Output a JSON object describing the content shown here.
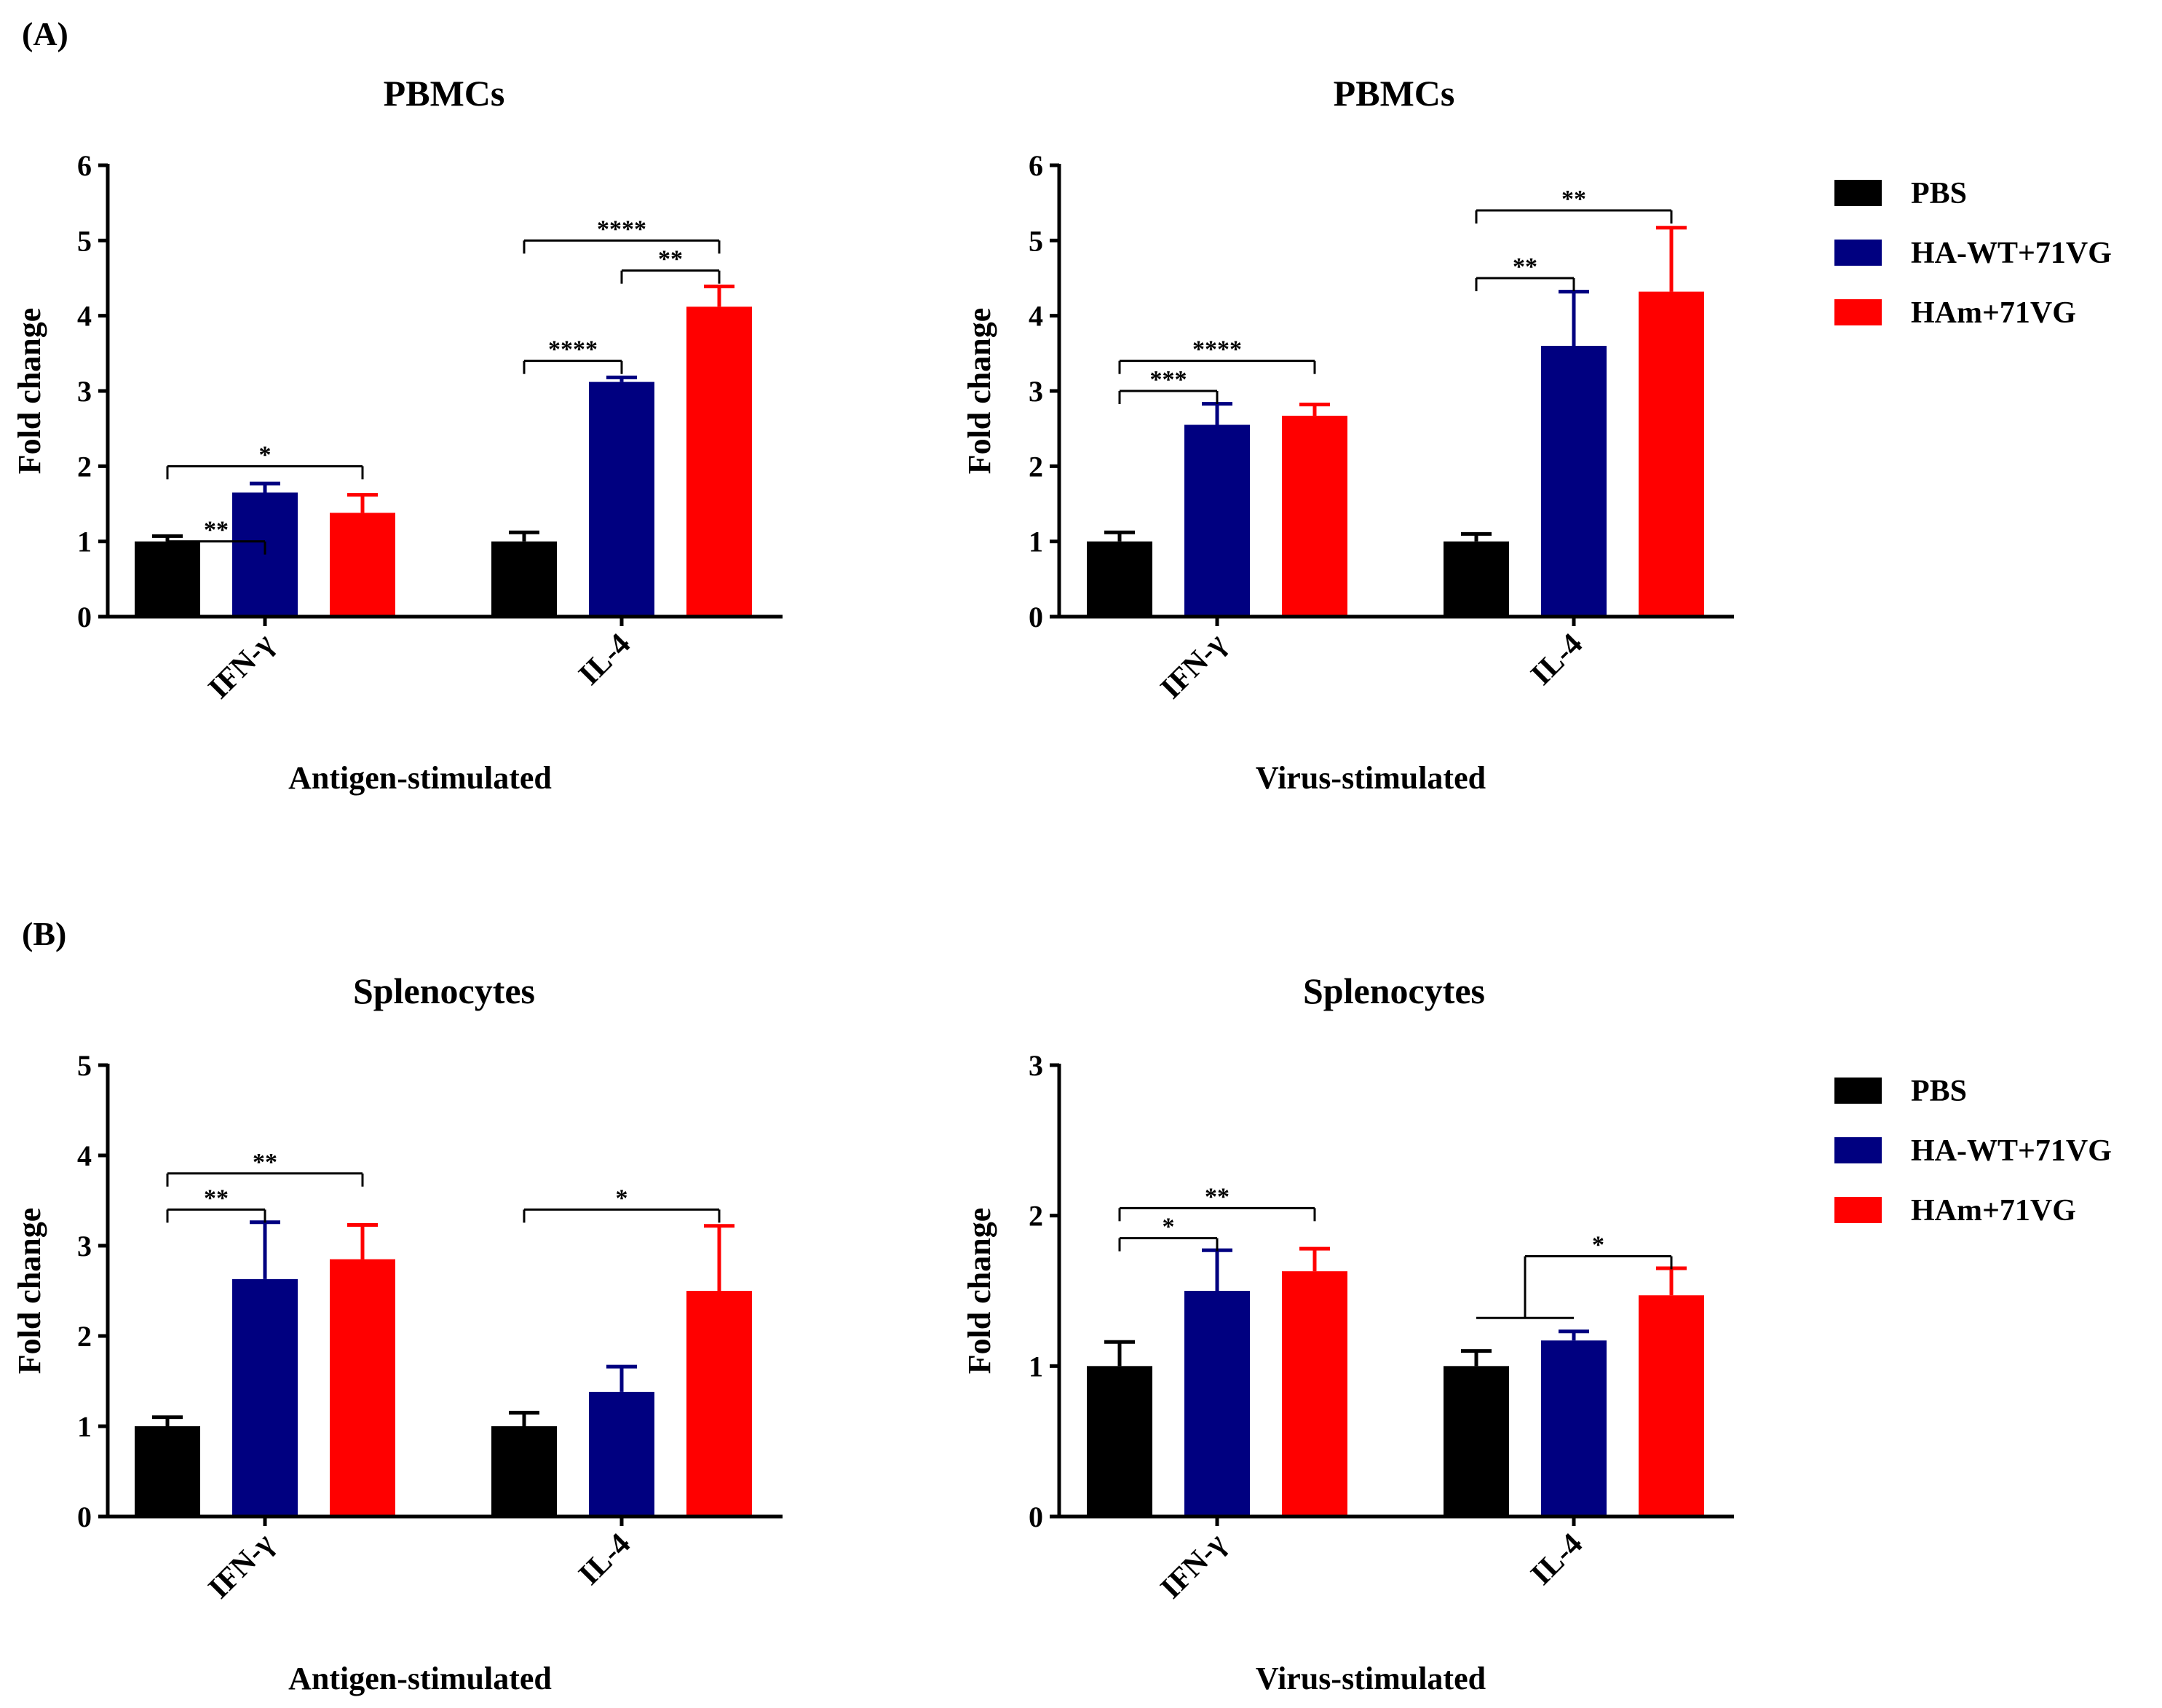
{
  "panel_labels": [
    "(A)",
    "(B)"
  ],
  "legend": {
    "items": [
      {
        "label": "PBS",
        "color": "#000000"
      },
      {
        "label": "HA-WT+71VG",
        "color": "#000080"
      },
      {
        "label": "HAm+71VG",
        "color": "#ff0000"
      }
    ]
  },
  "chart_data": [
    {
      "type": "bar",
      "title": "PBMCs",
      "xlabel": "Antigen-stimulated",
      "ylabel": "Fold change",
      "ylim": [
        0,
        6
      ],
      "yticks": [
        "0",
        "1",
        "2",
        "3",
        "4",
        "5",
        "6"
      ],
      "categories": [
        "IFN-γ",
        "IL-4"
      ],
      "series": [
        {
          "name": "PBS",
          "color": "#000000",
          "values": [
            1.0,
            1.0
          ],
          "errors": [
            0.07,
            0.12
          ]
        },
        {
          "name": "HA-WT+71VG",
          "color": "#000080",
          "values": [
            1.65,
            3.12
          ],
          "errors": [
            0.12,
            0.06
          ]
        },
        {
          "name": "HAm+71VG",
          "color": "#ff0000",
          "values": [
            1.38,
            4.12
          ],
          "errors": [
            0.24,
            0.27
          ]
        }
      ],
      "significance": [
        {
          "category": 0,
          "from": 0,
          "to": 1,
          "label": "**",
          "level": 1
        },
        {
          "category": 0,
          "from": 0,
          "to": 2,
          "label": "*",
          "level": 2
        },
        {
          "category": 1,
          "from": 0,
          "to": 1,
          "label": "****",
          "level": 3.4
        },
        {
          "category": 1,
          "from": 1,
          "to": 2,
          "label": "**",
          "level": 4.6
        },
        {
          "category": 1,
          "from": 0,
          "to": 2,
          "label": "****",
          "level": 5.0
        }
      ]
    },
    {
      "type": "bar",
      "title": "PBMCs",
      "xlabel": "Virus-stimulated",
      "ylabel": "Fold change",
      "ylim": [
        0,
        6
      ],
      "yticks": [
        "0",
        "1",
        "2",
        "3",
        "4",
        "5",
        "6"
      ],
      "categories": [
        "IFN-γ",
        "IL-4"
      ],
      "series": [
        {
          "name": "PBS",
          "color": "#000000",
          "values": [
            1.0,
            1.0
          ],
          "errors": [
            0.12,
            0.1
          ]
        },
        {
          "name": "HA-WT+71VG",
          "color": "#000080",
          "values": [
            2.55,
            3.6
          ],
          "errors": [
            0.28,
            0.72
          ]
        },
        {
          "name": "HAm+71VG",
          "color": "#ff0000",
          "values": [
            2.67,
            4.32
          ],
          "errors": [
            0.15,
            0.85
          ]
        }
      ],
      "significance": [
        {
          "category": 0,
          "from": 0,
          "to": 1,
          "label": "***",
          "level": 3.0
        },
        {
          "category": 0,
          "from": 0,
          "to": 2,
          "label": "****",
          "level": 3.4
        },
        {
          "category": 1,
          "from": 0,
          "to": 1,
          "label": "**",
          "level": 4.5
        },
        {
          "category": 1,
          "from": 0,
          "to": 2,
          "label": "**",
          "level": 5.4
        }
      ]
    },
    {
      "type": "bar",
      "title": "Splenocytes",
      "xlabel": "Antigen-stimulated",
      "ylabel": "Fold change",
      "ylim": [
        0,
        5
      ],
      "yticks": [
        "0",
        "1",
        "2",
        "3",
        "4",
        "5"
      ],
      "categories": [
        "IFN-γ",
        "IL-4"
      ],
      "series": [
        {
          "name": "PBS",
          "color": "#000000",
          "values": [
            1.0,
            1.0
          ],
          "errors": [
            0.1,
            0.15
          ]
        },
        {
          "name": "HA-WT+71VG",
          "color": "#000080",
          "values": [
            2.63,
            1.38
          ],
          "errors": [
            0.63,
            0.28
          ]
        },
        {
          "name": "HAm+71VG",
          "color": "#ff0000",
          "values": [
            2.85,
            2.5
          ],
          "errors": [
            0.38,
            0.72
          ]
        }
      ],
      "significance": [
        {
          "category": 0,
          "from": 0,
          "to": 1,
          "label": "**",
          "level": 3.4
        },
        {
          "category": 0,
          "from": 0,
          "to": 2,
          "label": "**",
          "level": 3.8
        },
        {
          "category": 1,
          "from": 0,
          "to": 2,
          "label": "*",
          "level": 3.4
        }
      ]
    },
    {
      "type": "bar",
      "title": "Splenocytes",
      "xlabel": "Virus-stimulated",
      "ylabel": "Fold change",
      "ylim": [
        0,
        3
      ],
      "yticks": [
        "0",
        "1",
        "2",
        "3"
      ],
      "categories": [
        "IFN-γ",
        "IL-4"
      ],
      "series": [
        {
          "name": "PBS",
          "color": "#000000",
          "values": [
            1.0,
            1.0
          ],
          "errors": [
            0.16,
            0.1
          ]
        },
        {
          "name": "HA-WT+71VG",
          "color": "#000080",
          "values": [
            1.5,
            1.17
          ],
          "errors": [
            0.27,
            0.06
          ]
        },
        {
          "name": "HAm+71VG",
          "color": "#ff0000",
          "values": [
            1.63,
            1.47
          ],
          "errors": [
            0.15,
            0.18
          ]
        }
      ],
      "significance": [
        {
          "category": 0,
          "from": 0,
          "to": 1,
          "label": "*",
          "level": 1.85
        },
        {
          "category": 0,
          "from": 0,
          "to": 2,
          "label": "**",
          "level": 2.05
        },
        {
          "category": 1,
          "from": 0.5,
          "to": 2,
          "label": "*",
          "level": 1.73,
          "stem_to": 1.32
        }
      ]
    }
  ]
}
